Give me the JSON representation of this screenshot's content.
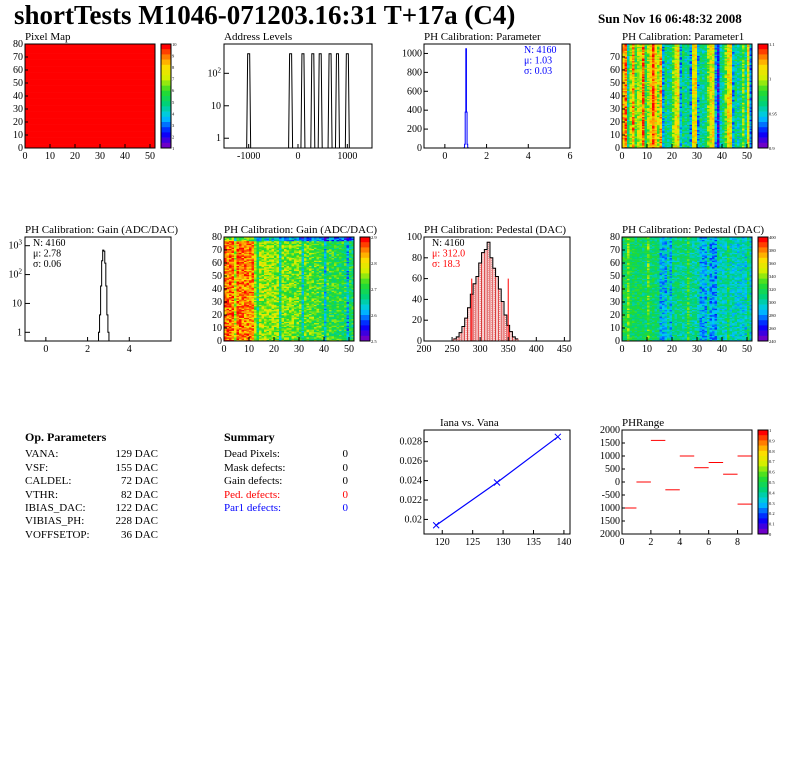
{
  "header": {
    "title": "shortTests M1046-071203.16:31 T+17a (C4)",
    "date": "Sun Nov 16 06:48:32 2008"
  },
  "colors": {
    "black": "#000000",
    "red": "#ff0000",
    "blue": "#0000ff",
    "pedestal_hist": "#cc0000"
  },
  "op_params": {
    "title": "Op. Parameters",
    "rows": [
      {
        "label": "VANA:",
        "value": "129 DAC"
      },
      {
        "label": "VSF:",
        "value": "155 DAC"
      },
      {
        "label": "CALDEL:",
        "value": "72 DAC"
      },
      {
        "label": "VTHR:",
        "value": "82 DAC"
      },
      {
        "label": "IBIAS_DAC:",
        "value": "122 DAC"
      },
      {
        "label": "VIBIAS_PH:",
        "value": "228 DAC"
      },
      {
        "label": "VOFFSETOP:",
        "value": "36 DAC"
      }
    ]
  },
  "summary": {
    "title": "Summary",
    "rows": [
      {
        "label": "Dead Pixels:",
        "value": "0",
        "color": "#000000"
      },
      {
        "label": "Mask defects:",
        "value": "0",
        "color": "#000000"
      },
      {
        "label": "Gain defects:",
        "value": "0",
        "color": "#000000"
      },
      {
        "label": "Ped. defects:",
        "value": "0",
        "color": "#ff0000"
      },
      {
        "label": "Par1 defects:",
        "value": "0",
        "color": "#0000ff"
      }
    ]
  },
  "chart_data": [
    {
      "id": "pixelmap",
      "type": "heatmap",
      "title": "Pixel Map",
      "xlim": [
        0,
        52
      ],
      "ylim": [
        0,
        80
      ],
      "xticks": [
        "0",
        "10",
        "20",
        "30",
        "40",
        "50"
      ],
      "yticks": [
        "0",
        "10",
        "20",
        "30",
        "40",
        "50",
        "60",
        "70",
        "80"
      ],
      "zlim": [
        0,
        10
      ],
      "fill_value": 10,
      "colorbar_ticks": [
        "10",
        "9",
        "8",
        "7",
        "6",
        "5",
        "4",
        "3",
        "2",
        "1"
      ]
    },
    {
      "id": "address",
      "type": "bar",
      "title": "Address Levels",
      "log_y": true,
      "xlim": [
        -1500,
        1500
      ],
      "xticks": [
        "-1000",
        "0",
        "1000"
      ],
      "yticks": [
        "1",
        "10",
        "10^2"
      ],
      "peaks": [
        -1000,
        -150,
        100,
        300,
        450,
        650,
        800,
        1000
      ],
      "peak_height": 400,
      "ylim": [
        0.5,
        800
      ]
    },
    {
      "id": "phpar",
      "type": "bar",
      "title": "PH Calibration: Parameter",
      "xlim": [
        -1,
        6
      ],
      "ylim": [
        0,
        1100
      ],
      "xticks": [
        "0",
        "2",
        "4",
        "6"
      ],
      "yticks": [
        "0",
        "200",
        "400",
        "600",
        "800",
        "1000"
      ],
      "stats": [
        "N: 4160",
        "μ: 1.03",
        "σ: 0.03"
      ],
      "x": [
        0.93,
        0.96,
        0.99,
        1.02,
        1.05,
        1.08,
        1.11
      ],
      "values": [
        3,
        40,
        380,
        1050,
        380,
        40,
        3
      ]
    },
    {
      "id": "phpar1",
      "type": "heatmap",
      "title": "PH Calibration: Parameter1",
      "xlim": [
        0,
        52
      ],
      "ylim": [
        0,
        80
      ],
      "xticks": [
        "0",
        "10",
        "20",
        "30",
        "40",
        "50"
      ],
      "yticks": [
        "0",
        "10",
        "20",
        "30",
        "40",
        "50",
        "60",
        "70"
      ],
      "colorbar_ticks": [
        "1.1",
        "1",
        "0.95",
        "0.9"
      ]
    },
    {
      "id": "gainhist",
      "type": "bar",
      "title": "PH Calibration: Gain (ADC/DAC)",
      "log_y": true,
      "xlim": [
        -1,
        6
      ],
      "ylim": [
        0.5,
        2000
      ],
      "xticks": [
        "0",
        "2",
        "4"
      ],
      "yticks": [
        "1",
        "10",
        "10^2",
        "10^3"
      ],
      "stats": [
        "N: 4160",
        "μ: 2.78",
        "σ: 0.06"
      ],
      "x": [
        2.55,
        2.6,
        2.65,
        2.7,
        2.75,
        2.8,
        2.85,
        2.9,
        2.95,
        3.0
      ],
      "values": [
        1,
        4,
        40,
        300,
        700,
        650,
        250,
        40,
        4,
        1
      ]
    },
    {
      "id": "gainmap",
      "type": "heatmap",
      "title": "PH Calibration: Gain (ADC/DAC)",
      "xlim": [
        0,
        52
      ],
      "ylim": [
        0,
        80
      ],
      "xticks": [
        "0",
        "10",
        "20",
        "30",
        "40",
        "50"
      ],
      "yticks": [
        "0",
        "10",
        "20",
        "30",
        "40",
        "50",
        "60",
        "70",
        "80"
      ],
      "colorbar_ticks": [
        "2.9",
        "2.8",
        "2.7",
        "2.6",
        "2.5"
      ]
    },
    {
      "id": "pedhist",
      "type": "bar",
      "title": "PH Calibration: Pedestal (DAC)",
      "xlim": [
        200,
        460
      ],
      "ylim": [
        0,
        100
      ],
      "xticks": [
        "200",
        "250",
        "300",
        "350",
        "400",
        "450"
      ],
      "yticks": [
        "0",
        "20",
        "40",
        "60",
        "80",
        "100"
      ],
      "stats": [
        "N: 4160",
        "μ: 312.0",
        "σ: 18.3"
      ],
      "x": [
        255,
        260,
        265,
        270,
        275,
        280,
        285,
        290,
        295,
        300,
        305,
        310,
        315,
        320,
        325,
        330,
        335,
        340,
        345,
        350,
        355,
        360,
        365
      ],
      "values": [
        2,
        4,
        8,
        14,
        22,
        32,
        45,
        55,
        62,
        75,
        85,
        88,
        95,
        80,
        70,
        62,
        50,
        38,
        25,
        15,
        9,
        4,
        2
      ],
      "markers": [
        285,
        350
      ]
    },
    {
      "id": "pedmap",
      "type": "heatmap",
      "title": "PH Calibration: Pedestal (DAC)",
      "xlim": [
        0,
        52
      ],
      "ylim": [
        0,
        80
      ],
      "xticks": [
        "0",
        "10",
        "20",
        "30",
        "40",
        "50"
      ],
      "yticks": [
        "0",
        "10",
        "20",
        "30",
        "40",
        "50",
        "60",
        "70",
        "80"
      ],
      "colorbar_ticks": [
        "400",
        "380",
        "360",
        "340",
        "320",
        "300",
        "280",
        "260",
        "240"
      ]
    },
    {
      "id": "iana",
      "type": "line",
      "title": "Iana vs. Vana",
      "xlim": [
        117,
        141
      ],
      "ylim": [
        0.0185,
        0.0292
      ],
      "xticks": [
        "120",
        "125",
        "130",
        "135",
        "140"
      ],
      "yticks": [
        "0.02",
        "0.022",
        "0.024",
        "0.026",
        "0.028"
      ],
      "x": [
        119,
        129,
        139
      ],
      "y": [
        0.0194,
        0.0238,
        0.0285
      ]
    },
    {
      "id": "phrange",
      "type": "scatter",
      "title": "PHRange",
      "xlim": [
        0,
        9
      ],
      "ylim": [
        -2000,
        2000
      ],
      "xticks": [
        "0",
        "2",
        "4",
        "6",
        "8"
      ],
      "yticks": [
        "2000",
        "1500",
        "1000",
        "500",
        "0",
        "-500",
        "1000",
        "1500",
        "2000"
      ],
      "colorbar_ticks": [
        "1",
        "0.9",
        "0.8",
        "0.7",
        "0.6",
        "0.5",
        "0.4",
        "0.3",
        "0.2",
        "0.1",
        "0"
      ],
      "segments": [
        {
          "x": 0,
          "y": -1000
        },
        {
          "x": 1,
          "y": 0
        },
        {
          "x": 2,
          "y": 1600
        },
        {
          "x": 3,
          "y": -300
        },
        {
          "x": 4,
          "y": 1000
        },
        {
          "x": 5,
          "y": 550
        },
        {
          "x": 6,
          "y": 750
        },
        {
          "x": 7,
          "y": 300
        },
        {
          "x": 8,
          "y": -850
        },
        {
          "x": 8,
          "y": 1000
        }
      ]
    }
  ]
}
